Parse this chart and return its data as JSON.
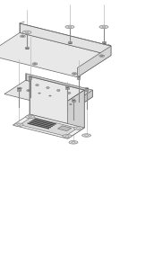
{
  "bg_color": "#ffffff",
  "line_color": "#666666",
  "line_color2": "#999999",
  "face_top": "#f2f2f2",
  "face_left": "#e0e0e0",
  "face_right": "#d0d0d0",
  "face_front": "#e8e8e8",
  "plate_top": "#e5e5e5",
  "plate_side": "#d0d0d0",
  "base_top": "#e8e8e8",
  "base_side": "#d5d5d5",
  "base_front": "#e2e2e2",
  "screw_shaft": "#888888",
  "screw_head": "#999999",
  "screw_slot": "#555555",
  "washer_fill": "#dddddd",
  "washer_edge": "#888888",
  "hole_fill": "#aaaaaa",
  "pcb_dark": "#444444",
  "pcb_mid": "#888888",
  "figsize": [
    1.72,
    2.98
  ],
  "dpi": 100,
  "lw": 0.5
}
